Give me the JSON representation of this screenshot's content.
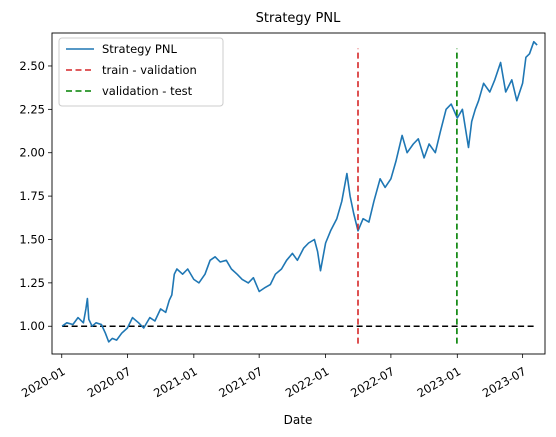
{
  "chart_data": {
    "type": "line",
    "title": "Strategy PNL",
    "xlabel": "Date",
    "ylabel": "",
    "x_range": [
      "2019-12-05",
      "2023-09-01"
    ],
    "ylim": [
      0.84,
      2.69
    ],
    "grid": false,
    "legend": {
      "placement": "top-left",
      "entries": [
        "Strategy PNL",
        "train - validation",
        "validation - test"
      ]
    },
    "x_ticks": [
      {
        "date": "2020-01-01",
        "label": "2020-01"
      },
      {
        "date": "2020-07-01",
        "label": "2020-07"
      },
      {
        "date": "2021-01-01",
        "label": "2021-01"
      },
      {
        "date": "2021-07-01",
        "label": "2021-07"
      },
      {
        "date": "2022-01-01",
        "label": "2022-01"
      },
      {
        "date": "2022-07-01",
        "label": "2022-07"
      },
      {
        "date": "2023-01-01",
        "label": "2023-01"
      },
      {
        "date": "2023-07-01",
        "label": "2023-07"
      }
    ],
    "y_ticks": [
      {
        "value": 1.0,
        "label": "1.00"
      },
      {
        "value": 1.25,
        "label": "1.25"
      },
      {
        "value": 1.5,
        "label": "1.50"
      },
      {
        "value": 1.75,
        "label": "1.75"
      },
      {
        "value": 2.0,
        "label": "2.00"
      },
      {
        "value": 2.25,
        "label": "2.25"
      },
      {
        "value": 2.5,
        "label": "2.50"
      }
    ],
    "series": [
      {
        "name": "Strategy PNL",
        "color": "#1f77b4",
        "style": "solid",
        "points": [
          [
            "2020-01-02",
            1.0
          ],
          [
            "2020-01-15",
            1.02
          ],
          [
            "2020-02-01",
            1.01
          ],
          [
            "2020-02-15",
            1.05
          ],
          [
            "2020-03-01",
            1.02
          ],
          [
            "2020-03-08",
            1.1
          ],
          [
            "2020-03-12",
            1.16
          ],
          [
            "2020-03-16",
            1.04
          ],
          [
            "2020-03-25",
            1.0
          ],
          [
            "2020-04-05",
            1.02
          ],
          [
            "2020-04-20",
            1.01
          ],
          [
            "2020-05-01",
            0.96
          ],
          [
            "2020-05-10",
            0.91
          ],
          [
            "2020-05-20",
            0.93
          ],
          [
            "2020-06-01",
            0.92
          ],
          [
            "2020-06-15",
            0.96
          ],
          [
            "2020-07-01",
            0.99
          ],
          [
            "2020-07-15",
            1.05
          ],
          [
            "2020-08-01",
            1.02
          ],
          [
            "2020-08-15",
            0.99
          ],
          [
            "2020-09-01",
            1.05
          ],
          [
            "2020-09-15",
            1.03
          ],
          [
            "2020-10-01",
            1.1
          ],
          [
            "2020-10-15",
            1.08
          ],
          [
            "2020-10-25",
            1.15
          ],
          [
            "2020-11-01",
            1.18
          ],
          [
            "2020-11-08",
            1.3
          ],
          [
            "2020-11-15",
            1.33
          ],
          [
            "2020-12-01",
            1.3
          ],
          [
            "2020-12-15",
            1.33
          ],
          [
            "2021-01-01",
            1.27
          ],
          [
            "2021-01-15",
            1.25
          ],
          [
            "2021-02-01",
            1.3
          ],
          [
            "2021-02-15",
            1.38
          ],
          [
            "2021-03-01",
            1.4
          ],
          [
            "2021-03-15",
            1.37
          ],
          [
            "2021-04-01",
            1.38
          ],
          [
            "2021-04-15",
            1.33
          ],
          [
            "2021-05-01",
            1.3
          ],
          [
            "2021-05-15",
            1.27
          ],
          [
            "2021-06-01",
            1.25
          ],
          [
            "2021-06-15",
            1.28
          ],
          [
            "2021-07-01",
            1.2
          ],
          [
            "2021-07-15",
            1.22
          ],
          [
            "2021-08-01",
            1.24
          ],
          [
            "2021-08-15",
            1.3
          ],
          [
            "2021-09-01",
            1.33
          ],
          [
            "2021-09-15",
            1.38
          ],
          [
            "2021-10-01",
            1.42
          ],
          [
            "2021-10-15",
            1.38
          ],
          [
            "2021-11-01",
            1.45
          ],
          [
            "2021-11-15",
            1.48
          ],
          [
            "2021-12-01",
            1.5
          ],
          [
            "2021-12-10",
            1.43
          ],
          [
            "2021-12-18",
            1.32
          ],
          [
            "2022-01-01",
            1.48
          ],
          [
            "2022-01-15",
            1.55
          ],
          [
            "2022-02-01",
            1.62
          ],
          [
            "2022-02-15",
            1.72
          ],
          [
            "2022-03-01",
            1.88
          ],
          [
            "2022-03-10",
            1.75
          ],
          [
            "2022-03-20",
            1.65
          ],
          [
            "2022-04-01",
            1.55
          ],
          [
            "2022-04-15",
            1.62
          ],
          [
            "2022-05-01",
            1.6
          ],
          [
            "2022-05-15",
            1.72
          ],
          [
            "2022-06-01",
            1.85
          ],
          [
            "2022-06-15",
            1.8
          ],
          [
            "2022-07-01",
            1.85
          ],
          [
            "2022-07-15",
            1.95
          ],
          [
            "2022-08-01",
            2.1
          ],
          [
            "2022-08-15",
            2.0
          ],
          [
            "2022-09-01",
            2.05
          ],
          [
            "2022-09-15",
            2.08
          ],
          [
            "2022-10-01",
            1.97
          ],
          [
            "2022-10-15",
            2.05
          ],
          [
            "2022-11-01",
            2.0
          ],
          [
            "2022-11-15",
            2.12
          ],
          [
            "2022-12-01",
            2.25
          ],
          [
            "2022-12-15",
            2.28
          ],
          [
            "2023-01-01",
            2.2
          ],
          [
            "2023-01-15",
            2.25
          ],
          [
            "2023-02-01",
            2.03
          ],
          [
            "2023-02-10",
            2.18
          ],
          [
            "2023-02-20",
            2.25
          ],
          [
            "2023-03-01",
            2.3
          ],
          [
            "2023-03-15",
            2.4
          ],
          [
            "2023-04-01",
            2.35
          ],
          [
            "2023-04-15",
            2.42
          ],
          [
            "2023-05-01",
            2.52
          ],
          [
            "2023-05-15",
            2.35
          ],
          [
            "2023-06-01",
            2.42
          ],
          [
            "2023-06-15",
            2.3
          ],
          [
            "2023-07-01",
            2.4
          ],
          [
            "2023-07-10",
            2.55
          ],
          [
            "2023-07-20",
            2.57
          ],
          [
            "2023-08-01",
            2.64
          ],
          [
            "2023-08-10",
            2.62
          ]
        ]
      },
      {
        "name": "train - validation",
        "color": "#d62728",
        "style": "dashed",
        "points": [
          [
            "2022-04-01",
            0.9
          ],
          [
            "2022-04-01",
            2.6
          ]
        ]
      },
      {
        "name": "validation - test",
        "color": "#008000",
        "style": "dashed",
        "points": [
          [
            "2022-12-31",
            0.9
          ],
          [
            "2022-12-31",
            2.6
          ]
        ]
      }
    ],
    "reference_line": {
      "value": 1.0,
      "color": "#000000",
      "style": "dashed",
      "x_start": "2020-01-02",
      "x_end": "2023-08-10"
    }
  }
}
